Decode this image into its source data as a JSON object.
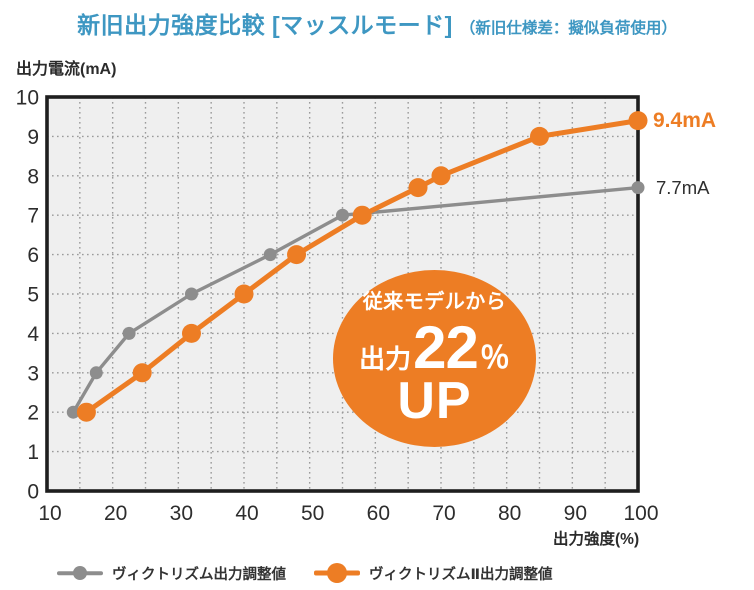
{
  "title": {
    "main": "新旧出力強度比較 [マッスルモード]",
    "sub": "（新旧仕様差：擬似負荷使用）"
  },
  "colors": {
    "blue": "#3E97C2",
    "orange": "#ED7D24",
    "gray": "#8D8D8D",
    "text_dark": "#2B2B2B",
    "plot_bg": "#EFEFEF",
    "plot_border": "#1E1E1E",
    "grid_dot": "#9A9A9A"
  },
  "chart_data": {
    "type": "line",
    "title": "新旧出力強度比較 [マッスルモード]（新旧仕様差：擬似負荷使用）",
    "xlabel": "出力強度(%)",
    "ylabel": "出力電流(mA)",
    "xlim": [
      10,
      100
    ],
    "ylim": [
      0,
      10
    ],
    "x_ticks": [
      10,
      20,
      30,
      40,
      50,
      60,
      70,
      80,
      90,
      100
    ],
    "y_ticks": [
      0,
      1,
      2,
      3,
      4,
      5,
      6,
      7,
      8,
      9,
      10
    ],
    "grid": {
      "style": "dotted",
      "vertical_interval": 5,
      "horizontal_interval": 1
    },
    "legend_position": "bottom",
    "series": [
      {
        "name": "ヴィクトリズム出力調整値",
        "color": "#8D8D8D",
        "end_label": "7.7mA",
        "points": [
          [
            14,
            2
          ],
          [
            17.5,
            3
          ],
          [
            22.5,
            4
          ],
          [
            32,
            5
          ],
          [
            44,
            6
          ],
          [
            55,
            7
          ],
          [
            100,
            7.7
          ]
        ]
      },
      {
        "name": "ヴィクトリズムⅡ出力調整値",
        "color": "#ED7D24",
        "end_label": "9.4mA",
        "points": [
          [
            16,
            2
          ],
          [
            24.5,
            3
          ],
          [
            32,
            4
          ],
          [
            40,
            5
          ],
          [
            48,
            6
          ],
          [
            58,
            7
          ],
          [
            66.5,
            7.7
          ],
          [
            70,
            8
          ],
          [
            85,
            9
          ],
          [
            100,
            9.4
          ]
        ]
      }
    ],
    "annotation_badge": {
      "line1": "従来モデルから",
      "line2_prefix": "出力",
      "line2_number": "22",
      "line2_suffix": "％",
      "line3": "UP"
    }
  }
}
